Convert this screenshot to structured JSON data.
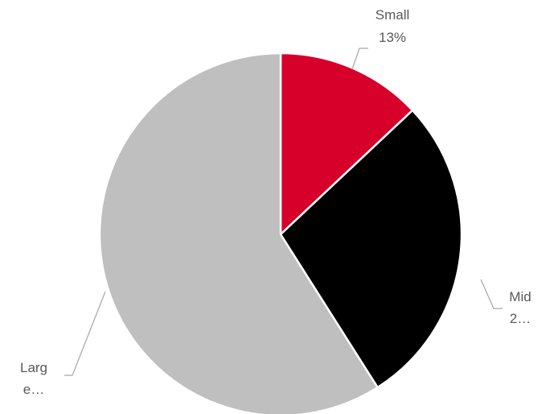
{
  "chart_data": {
    "type": "pie",
    "slices": [
      {
        "name": "Small",
        "value": 13,
        "label_lines": [
          "Small",
          "13%"
        ],
        "color": "#d6002a"
      },
      {
        "name": "Mid",
        "value": 28,
        "label_lines": [
          "Mid",
          "2…"
        ],
        "color": "#000000"
      },
      {
        "name": "Large",
        "value": 59,
        "label_lines": [
          "Larg",
          "e…"
        ],
        "color": "#bfbfbf"
      }
    ],
    "title": "",
    "legend": "none"
  }
}
